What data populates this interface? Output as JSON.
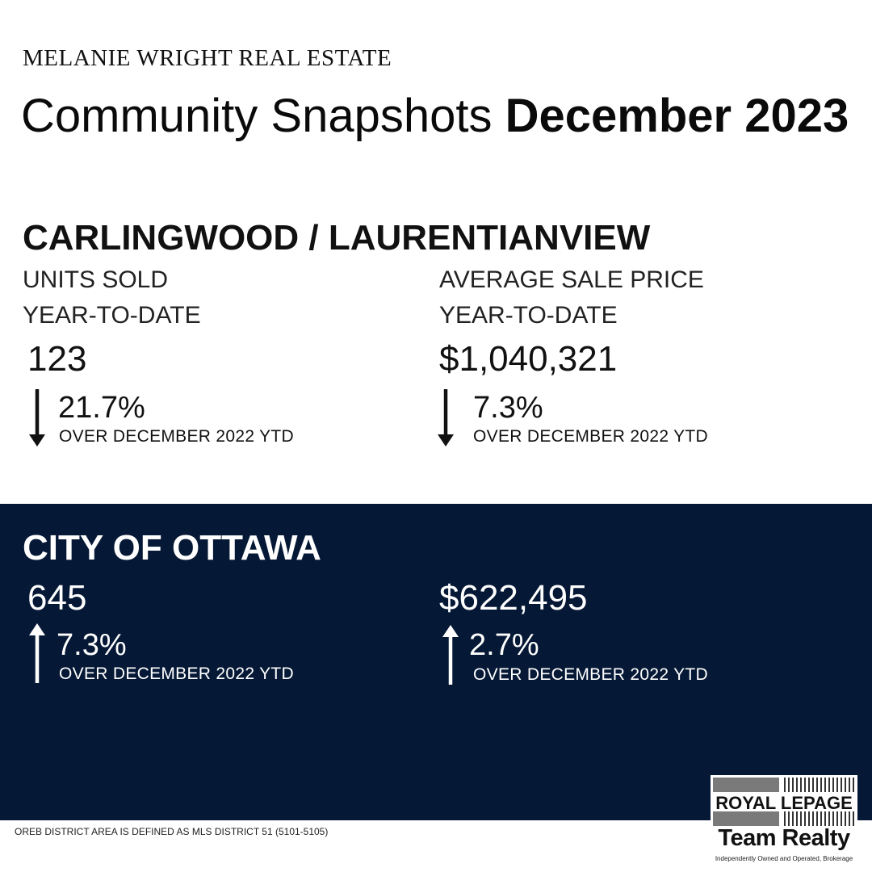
{
  "header": {
    "brand": "MELANIE WRIGHT REAL ESTATE",
    "title_light": "Community Snapshots",
    "title_bold": "December 2023"
  },
  "community": {
    "name": "CARLINGWOOD / LAURENTIANVIEW",
    "units": {
      "label": "UNITS SOLD",
      "period": "YEAR-TO-DATE",
      "value": "123",
      "change": "21.7%",
      "direction": "down",
      "comparison": "OVER DECEMBER 2022 YTD"
    },
    "price": {
      "label": "AVERAGE SALE PRICE",
      "period": "YEAR-TO-DATE",
      "value": "$1,040,321",
      "change": "7.3%",
      "direction": "down",
      "comparison": "OVER DECEMBER 2022 YTD"
    }
  },
  "city": {
    "name": "CITY OF OTTAWA",
    "units": {
      "value": "645",
      "change": "7.3%",
      "direction": "up",
      "comparison": "OVER DECEMBER 2022 YTD"
    },
    "price": {
      "value": "$622,495",
      "change": "2.7%",
      "direction": "up",
      "comparison": "OVER DECEMBER 2022 YTD"
    }
  },
  "footer": {
    "note": "OREB DISTRICT AREA IS DEFINED AS MLS DISTRICT 51 (5101-5105)"
  },
  "logo": {
    "line1": "ROYAL LEPAGE",
    "line2": "Team Realty",
    "line3": "Independently Owned and Operated, Brokerage"
  },
  "colors": {
    "navy": "#051835",
    "text": "#111111"
  },
  "icons": {
    "down": "arrow-down-icon",
    "up": "arrow-up-icon"
  }
}
